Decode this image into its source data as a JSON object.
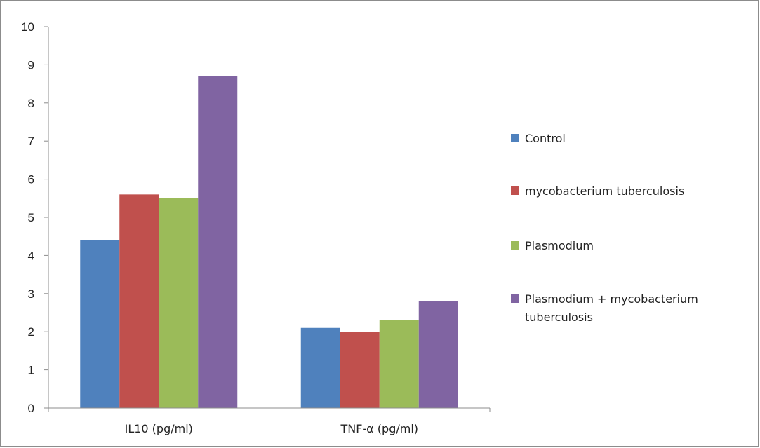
{
  "chart_data": {
    "type": "bar",
    "title": "",
    "xlabel": "",
    "ylabel": "",
    "categories": [
      "IL10 (pg/ml)",
      "TNF-α (pg/ml)"
    ],
    "ylim": [
      0,
      10
    ],
    "yticks": [
      0,
      1,
      2,
      3,
      4,
      5,
      6,
      7,
      8,
      9,
      10
    ],
    "grid": false,
    "legend_position": "right",
    "series": [
      {
        "name": "Control",
        "color": "#4f81bd",
        "values": [
          4.4,
          2.1
        ]
      },
      {
        "name": "mycobacterium tuberculosis",
        "color": "#c0504d",
        "values": [
          5.6,
          2.0
        ]
      },
      {
        "name": "Plasmodium",
        "color": "#9bbb59",
        "values": [
          5.5,
          2.3
        ]
      },
      {
        "name": "Plasmodium +  mycobacterium tuberculosis",
        "color": "#8064a2",
        "values": [
          8.7,
          2.8
        ]
      }
    ]
  }
}
